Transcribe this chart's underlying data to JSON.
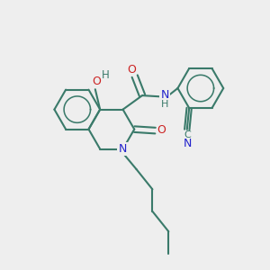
{
  "bg_color": "#eeeeee",
  "bond_color": "#3a7a6a",
  "N_color": "#2222cc",
  "O_color": "#cc2222",
  "line_width": 1.5,
  "figsize": [
    3.0,
    3.0
  ],
  "dpi": 100,
  "xlim": [
    0,
    10
  ],
  "ylim": [
    0,
    10
  ]
}
